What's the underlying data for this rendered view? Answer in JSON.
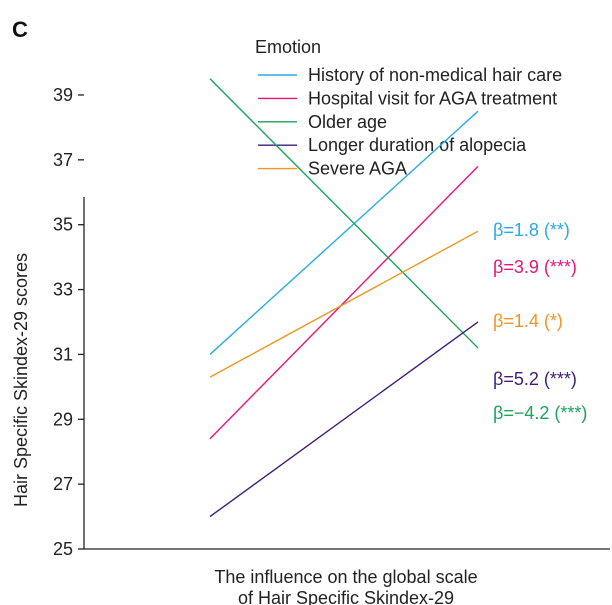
{
  "chart_data": {
    "type": "line",
    "panel_label": "C",
    "legend_title": "Emotion",
    "legend_position": "top-right",
    "ylabel": "Hair Specific Skindex-29 scores",
    "xlabel_lines": [
      "The influence on the global scale",
      "of Hair Specific Skindex-29"
    ],
    "ylim": [
      25,
      40
    ],
    "yticks": [
      25,
      27,
      29,
      31,
      33,
      35,
      37,
      39
    ],
    "grid": false,
    "x": [
      0,
      1
    ],
    "series": [
      {
        "name": "History of non-medical hair care",
        "color": "#29abe2",
        "values": [
          31.0,
          38.5
        ],
        "annotation": "β=1.8 (**)"
      },
      {
        "name": "Hospital visit for AGA treatment",
        "color": "#e6157b",
        "values": [
          28.4,
          36.8
        ],
        "annotation": "β=3.9 (***)"
      },
      {
        "name": "Older age",
        "color": "#1aa35a",
        "values": [
          39.5,
          31.2
        ],
        "annotation": "β=−4.2 (***)"
      },
      {
        "name": "Longer duration of alopecia",
        "color": "#3d1f7a",
        "values": [
          26.0,
          32.0
        ],
        "annotation": "β=5.2 (***)"
      },
      {
        "name": "Severe AGA",
        "color": "#f0961e",
        "values": [
          30.3,
          34.8
        ],
        "annotation": "β=1.4 (*)"
      }
    ],
    "annotation_order": [
      0,
      1,
      4,
      3,
      2
    ]
  }
}
